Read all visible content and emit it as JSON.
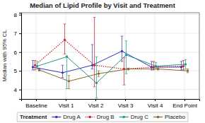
{
  "chart_data": {
    "type": "line",
    "title": "Median of Lipid Profile by Visit and Treatment",
    "ylabel": "Median with 95% CL",
    "legend_title": "Treatment",
    "categories": [
      "Baseline",
      "Visit 1",
      "Visit 2",
      "Visit 3",
      "Visit 4",
      "End Point"
    ],
    "series": [
      {
        "name": "Drug A",
        "color": "#3333bb",
        "line_style": "solid",
        "values": [
          5.2,
          4.9,
          5.3,
          6.05,
          5.2,
          5.2
        ],
        "lower": [
          5.05,
          4.65,
          5.1,
          5.5,
          5.05,
          5.05
        ],
        "upper": [
          5.55,
          5.3,
          6.4,
          6.85,
          5.5,
          5.5
        ]
      },
      {
        "name": "Drug B",
        "color": "#cc2222",
        "line_style": "dotted",
        "values": [
          5.3,
          6.65,
          5.3,
          5.1,
          5.2,
          5.25
        ],
        "lower": [
          5.05,
          5.9,
          4.15,
          4.25,
          5.05,
          5.05
        ],
        "upper": [
          5.55,
          7.5,
          7.85,
          5.7,
          5.5,
          5.55
        ]
      },
      {
        "name": "Drug C",
        "color": "#229988",
        "line_style": "solid",
        "values": [
          5.25,
          5.75,
          4.35,
          5.85,
          5.25,
          5.35
        ],
        "lower": [
          5.1,
          4.05,
          3.55,
          4.85,
          5.1,
          5.1
        ],
        "upper": [
          5.5,
          5.8,
          5.75,
          6.6,
          5.45,
          5.6
        ]
      },
      {
        "name": "Placebo",
        "color": "#886633",
        "line_style": "solid",
        "values": [
          5.05,
          4.45,
          4.85,
          5.1,
          5.1,
          5.0
        ],
        "lower": [
          5.0,
          4.05,
          4.7,
          5.05,
          5.05,
          4.9
        ],
        "upper": [
          5.1,
          4.75,
          5.0,
          5.15,
          5.15,
          5.1
        ]
      }
    ],
    "ylim": [
      3.5,
      8.1
    ],
    "yticks": [
      4,
      5,
      6,
      7,
      8
    ],
    "grid": true,
    "legend": "bottom",
    "marker": "circle"
  }
}
